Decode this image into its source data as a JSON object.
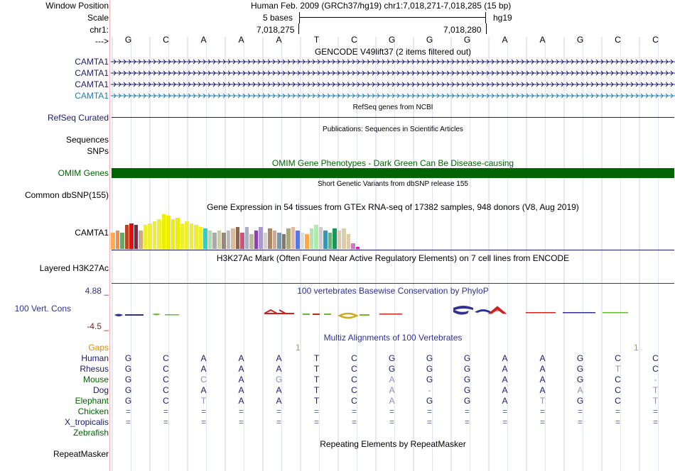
{
  "header": {
    "window_position_label": "Window Position",
    "window_position_text": "Human Feb. 2009 (GRCh37/hg19)   chr1:7,018,271-7,018,285 (15 bp)",
    "scale_label": "Scale",
    "scale_text": "5 bases",
    "scale_assembly": "hg19",
    "chrom_label": "chr1:",
    "coord_left": "7,018,275",
    "coord_right": "7,018,280",
    "arrow_label": "--->",
    "sequence": [
      "G",
      "C",
      "A",
      "A",
      "A",
      "T",
      "C",
      "G",
      "G",
      "G",
      "A",
      "A",
      "G",
      "C",
      "C"
    ]
  },
  "tracks": {
    "gencode": {
      "title": "GENCODE V49lift37 (2 items filtered out)",
      "items": [
        {
          "label": "CAMTA1",
          "color": "#1a1a6e"
        },
        {
          "label": "CAMTA1",
          "color": "#1a1a6e"
        },
        {
          "label": "CAMTA1",
          "color": "#1a1a6e"
        },
        {
          "label": "CAMTA1",
          "color": "#1e7bb0"
        }
      ]
    },
    "refseq": {
      "label": "RefSeq Curated",
      "title": "RefSeq genes from NCBI",
      "color": "#1a1a6e"
    },
    "publications": {
      "label": "Sequences",
      "title": "Publications: Sequences in Scientific Articles"
    },
    "snps": {
      "label": "SNPs"
    },
    "omim": {
      "label": "OMIM Genes",
      "title": "OMIM Gene Phenotypes - Dark Green Can Be Disease-causing",
      "color": "#006400"
    },
    "dbsnp": {
      "label": "Common dbSNP(155)",
      "title": "Short Genetic Variants from dbSNP release 155"
    },
    "gtex": {
      "label": "CAMTA1",
      "title": "Gene Expression in 54 tissues from GTEx RNA-seq of 17382 samples, 948 donors (V8, Aug 2019)",
      "tissue_levels": [
        0.45,
        0.5,
        0.45,
        0.65,
        0.7,
        0.65,
        0.5,
        0.65,
        0.7,
        0.75,
        0.8,
        0.95,
        0.9,
        0.8,
        0.85,
        0.7,
        0.75,
        0.7,
        0.65,
        0.6,
        0.55,
        0.5,
        0.45,
        0.5,
        0.45,
        0.5,
        0.55,
        0.6,
        0.45,
        0.6,
        0.4,
        0.5,
        0.6,
        0.45,
        0.55,
        0.5,
        0.45,
        0.4,
        0.55,
        0.6,
        0.5,
        0.45,
        0.4,
        0.55,
        0.65,
        0.6,
        0.5,
        0.45,
        0.55,
        0.5,
        0.55,
        0.4,
        0.15,
        0.05
      ],
      "tissue_colors": [
        "#FFAA55",
        "#FF8844",
        "#66AA66",
        "#BB4422",
        "#DD1111",
        "#882244",
        "#CCAA88",
        "#EEEE33",
        "#EEEE33",
        "#EEEE33",
        "#EEEE33",
        "#EEEE00",
        "#EEEE00",
        "#EEEE00",
        "#EEEE00",
        "#EEEE33",
        "#EEEE33",
        "#EEEE33",
        "#EEEE33",
        "#EEEE33",
        "#33CCCC",
        "#AADDAA",
        "#AAAAAA",
        "#CCCCAA",
        "#998877",
        "#BBBBBB",
        "#DDBB99",
        "#886655",
        "#CC5577",
        "#AAAADD",
        "#BBBB99",
        "#8844AA",
        "#AA99CC",
        "#DDCCCC",
        "#AA8866",
        "#CCAA99",
        "#7799AA",
        "#887766",
        "#AAAA77",
        "#DDBBAA",
        "#5577EE",
        "#DDDDDD",
        "#FFAA44",
        "#BBDDBB",
        "#AAEEAA",
        "#CCCCCC",
        "#3399BB",
        "#77AA77",
        "#119955",
        "#DDCCAA",
        "#DDCCAA",
        "#DDCCAA",
        "#CC77CC",
        "#EE00EE"
      ]
    },
    "h3k27ac": {
      "label": "Layered H3K27Ac",
      "title": "H3K27Ac Mark (Often Found Near Active Regulatory Elements) on 7 cell lines from ENCODE"
    },
    "conservation": {
      "label": "100 Vert. Cons",
      "title": "100 vertebrates Basewise Conservation by PhyloP",
      "max_label": "4.88 _",
      "min_label": "-4.5 _",
      "label_color": "#2e3192",
      "range_color": "#8b1a1a"
    },
    "multiz": {
      "title": "Multiz Alignments of 100 Vertebrates",
      "gaps_label": "Gaps",
      "gaps_marks": [
        "1",
        "1"
      ],
      "species": [
        {
          "name": "Human",
          "color": "#1a1a6e",
          "bases": [
            "G",
            "C",
            "A",
            "A",
            "A",
            "T",
            "C",
            "G",
            "G",
            "G",
            "A",
            "A",
            "G",
            "C",
            "C"
          ]
        },
        {
          "name": "Rhesus",
          "color": "#1a1a6e",
          "bases": [
            "G",
            "C",
            "A",
            "A",
            "A",
            "T",
            "C",
            "G",
            "G",
            "G",
            "A",
            "A",
            "G",
            "T",
            "C"
          ]
        },
        {
          "name": "Mouse",
          "color": "#006400",
          "bases": [
            "G",
            "C",
            "C",
            "A",
            "G",
            "T",
            "C",
            "A",
            "G",
            "G",
            "A",
            "A",
            "G",
            "C",
            "-"
          ]
        },
        {
          "name": "Dog",
          "color": "#1a1a6e",
          "bases": [
            "G",
            "C",
            "A",
            "A",
            "A",
            "T",
            "C",
            "A",
            "-",
            "G",
            "A",
            "A",
            "A",
            "C",
            "T"
          ]
        },
        {
          "name": "Elephant",
          "color": "#006400",
          "bases": [
            "G",
            "C",
            "T",
            "A",
            "A",
            "T",
            "C",
            "A",
            "G",
            "G",
            "A",
            "T",
            "G",
            "C",
            "T"
          ]
        },
        {
          "name": "Chicken",
          "color": "#006400",
          "bases": [
            "=",
            "=",
            "=",
            "=",
            "=",
            "=",
            "=",
            "=",
            "=",
            "=",
            "=",
            "=",
            "=",
            "=",
            "="
          ]
        },
        {
          "name": "X_tropicalis",
          "color": "#1a1a6e",
          "bases": [
            "=",
            "=",
            "=",
            "=",
            "=",
            "=",
            "=",
            "=",
            "=",
            "=",
            "=",
            "=",
            "=",
            "=",
            "="
          ]
        },
        {
          "name": "Zebrafish",
          "color": "#006400",
          "bases": []
        }
      ]
    },
    "repeatmasker": {
      "label": "RepeatMasker",
      "title": "Repeating Elements by RepeatMasker"
    }
  }
}
